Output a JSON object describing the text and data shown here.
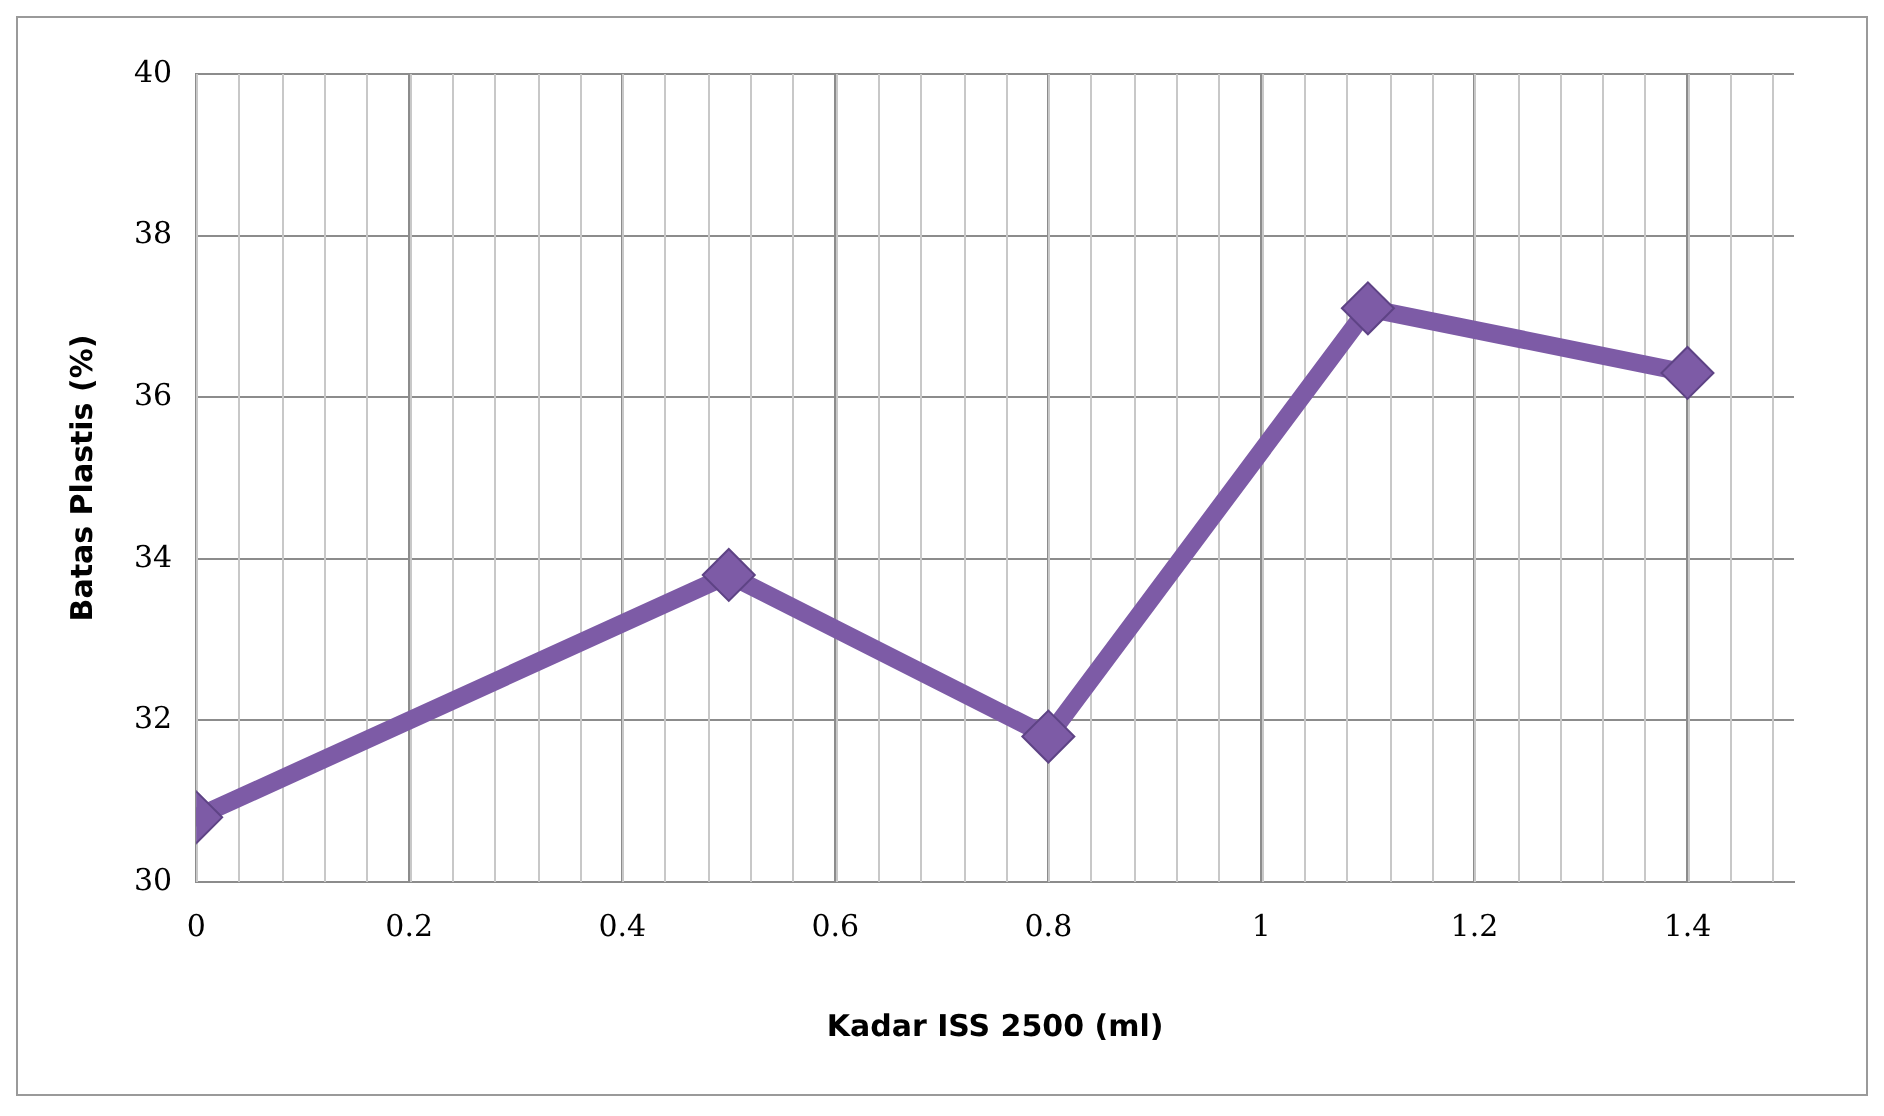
{
  "chart_data": {
    "type": "line",
    "xlabel": "Kadar ISS 2500 (ml)",
    "ylabel": "Batas Plastis (%)",
    "x": [
      0,
      0.5,
      0.8,
      1.1,
      1.4
    ],
    "series": [
      {
        "color": "#7d5ba6",
        "values": [
          30.8,
          33.8,
          31.8,
          37.1,
          36.3
        ]
      }
    ],
    "xlim": [
      0,
      1.5
    ],
    "xticks": [
      0,
      0.2,
      0.4,
      0.6,
      0.8,
      1,
      1.2,
      1.4
    ],
    "ylim": [
      30,
      40
    ],
    "yticks": [
      30,
      32,
      34,
      36,
      38,
      40
    ],
    "grid": true,
    "legend": false,
    "marker": "diamond",
    "line_style": "solid"
  }
}
